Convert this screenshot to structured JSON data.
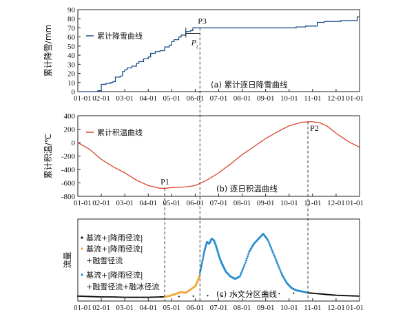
{
  "chart_data": [
    {
      "id": "snow",
      "type": "line",
      "title": "(a) 累计逐日降雪曲线",
      "ylabel": "累计降雪/mm",
      "xticks": [
        "01-01",
        "02-01",
        "03-01",
        "04-01",
        "05-01",
        "06-01",
        "07-01",
        "08-01",
        "09-01",
        "10-01",
        "11-01",
        "12-01",
        "01-01"
      ],
      "yticks": [
        0,
        10,
        20,
        30,
        40,
        50,
        60,
        70,
        80,
        90
      ],
      "ylim": [
        0,
        90
      ],
      "series": [
        {
          "name": "累计降雪曲线",
          "color": "#1f4e8c",
          "x": [
            0,
            0.4,
            0.6,
            0.8,
            0.85,
            1.0,
            1.2,
            1.4,
            1.5,
            1.6,
            1.8,
            1.9,
            2.0,
            2.1,
            2.3,
            2.5,
            2.6,
            2.8,
            3.0,
            3.1,
            3.3,
            3.5,
            3.7,
            3.9,
            4.0,
            4.1,
            4.3,
            4.4,
            4.6,
            4.8,
            4.9,
            5.0,
            12.0
          ],
          "y": [
            0,
            0,
            0,
            0,
            1,
            8,
            9,
            10,
            11,
            16,
            17,
            22,
            24,
            26,
            28,
            31,
            33,
            36,
            38,
            42,
            44,
            45,
            49,
            51,
            55,
            57,
            60,
            62,
            66,
            67,
            70,
            70,
            70
          ]
        }
      ],
      "ext_x": [
        5.0,
        9.2,
        9.3,
        9.5,
        9.7,
        10.0,
        10.2,
        10.5,
        10.8,
        11.2,
        11.5,
        11.8,
        11.9,
        12.0
      ],
      "ext_y": [
        70,
        70,
        71,
        71,
        72,
        72,
        76,
        77,
        77,
        78,
        78,
        78,
        82,
        82
      ],
      "annotations": [
        {
          "label": "P3",
          "x": 5.2,
          "y": 70
        },
        {
          "label": "Pt",
          "x": 4.6,
          "y": 70
        }
      ],
      "legend": "top-left"
    },
    {
      "id": "temp",
      "type": "line",
      "title": "(b) 逐日积温曲线",
      "ylabel": "累计积温/℃",
      "xticks": [
        "01-01",
        "02-01",
        "03-01",
        "04-01",
        "05-01",
        "06-01",
        "07-01",
        "08-01",
        "09-01",
        "10-01",
        "11-01",
        "12-01",
        "01-01"
      ],
      "yticks": [
        400,
        200,
        0,
        -200,
        -400,
        -600,
        -800
      ],
      "ylim": [
        -800,
        400
      ],
      "series": [
        {
          "name": "累计积温曲线",
          "color": "#d9442a",
          "x": [
            0,
            0.5,
            1.0,
            1.5,
            2.0,
            2.5,
            3.0,
            3.5,
            3.7,
            4.0,
            4.3,
            4.6,
            5.0,
            5.5,
            6.0,
            6.5,
            7.0,
            7.5,
            8.0,
            8.5,
            9.0,
            9.5,
            9.8,
            10.0,
            10.3,
            10.6,
            11.0,
            11.5,
            12.0
          ],
          "y": [
            0,
            -100,
            -250,
            -360,
            -450,
            -560,
            -640,
            -680,
            -680,
            -670,
            -665,
            -660,
            -640,
            -560,
            -450,
            -320,
            -180,
            -60,
            60,
            160,
            250,
            300,
            310,
            310,
            295,
            250,
            140,
            20,
            -70
          ]
        }
      ],
      "annotations": [
        {
          "label": "P1",
          "x": 3.7,
          "y": -680
        },
        {
          "label": "P2",
          "x": 9.8,
          "y": 310
        }
      ],
      "legend": "top-left"
    },
    {
      "id": "flow",
      "type": "scatter",
      "title": "(c) 水文分区曲线",
      "ylabel": "流量",
      "xticks": [
        "01-01",
        "02-01",
        "03-01",
        "04-01",
        "05-01",
        "06-01",
        "07-01",
        "08-01",
        "09-01",
        "10-01",
        "11-01",
        "12-01",
        "01-01"
      ],
      "ylim": [
        0,
        1
      ],
      "series": [
        {
          "name": "基流+|降雨径流|",
          "color": "#111111",
          "x": [
            0,
            0.5,
            1,
            1.5,
            2,
            2.5,
            3,
            3.5,
            3.7,
            9.8,
            10.2,
            10.6,
            11,
            11.5,
            12
          ],
          "y": [
            0.06,
            0.055,
            0.05,
            0.05,
            0.045,
            0.045,
            0.045,
            0.05,
            0.05,
            0.1,
            0.09,
            0.08,
            0.07,
            0.065,
            0.06
          ]
        },
        {
          "name": "基流+|降雨径流|+融雪径流",
          "color": "#f2a93b",
          "x": [
            3.7,
            4.0,
            4.2,
            4.4,
            4.6,
            4.8,
            5.0,
            5.1,
            5.2
          ],
          "y": [
            0.05,
            0.07,
            0.09,
            0.11,
            0.1,
            0.14,
            0.18,
            0.24,
            0.32
          ]
        },
        {
          "name": "基流+|降雨径流|+融雪径流+融冰径流",
          "color": "#2c8fd0",
          "x": [
            5.2,
            5.3,
            5.4,
            5.5,
            5.6,
            5.7,
            5.8,
            5.9,
            6.0,
            6.1,
            6.2,
            6.3,
            6.5,
            6.7,
            6.9,
            7.1,
            7.3,
            7.5,
            7.7,
            7.9,
            8.1,
            8.3,
            8.5,
            8.7,
            8.9,
            9.1,
            9.3,
            9.5,
            9.8
          ],
          "y": [
            0.34,
            0.48,
            0.62,
            0.72,
            0.7,
            0.76,
            0.74,
            0.66,
            0.56,
            0.48,
            0.42,
            0.36,
            0.3,
            0.27,
            0.3,
            0.44,
            0.6,
            0.7,
            0.76,
            0.82,
            0.74,
            0.6,
            0.46,
            0.32,
            0.22,
            0.16,
            0.13,
            0.12,
            0.1
          ]
        }
      ],
      "legend": "left"
    }
  ]
}
